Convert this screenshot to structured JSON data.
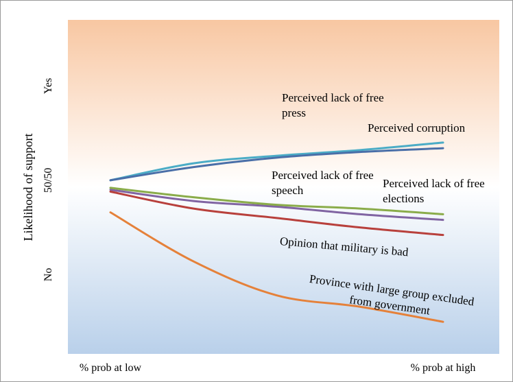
{
  "chart_data": {
    "type": "line",
    "y_label": "Likelihood of support",
    "categories": [
      "% prob at low",
      null,
      null,
      null,
      "% prob at high"
    ],
    "ylim": [
      -42,
      135
    ],
    "yticks": [
      {
        "value": 0,
        "label": "No"
      },
      {
        "value": 50,
        "label": "50/50"
      },
      {
        "value": 100,
        "label": "Yes"
      }
    ],
    "series": [
      {
        "name": "Perceived lack of free press",
        "color": "#4bacc6",
        "values": [
          50,
          59,
          63,
          66,
          70
        ]
      },
      {
        "name": "Perceived corruption",
        "color": "#4a6fa8",
        "values": [
          50,
          57,
          62,
          65,
          67
        ]
      },
      {
        "name": "Perceived lack of free speech",
        "color": "#8064a2",
        "values": [
          45,
          39,
          36,
          32,
          29
        ]
      },
      {
        "name": "Perceived lack of free elections",
        "color": "#8aac4a",
        "values": [
          46,
          41,
          37,
          35,
          32
        ]
      },
      {
        "name": "Opinion that military is bad",
        "color": "#b8403c",
        "values": [
          44,
          35,
          30,
          25,
          21
        ]
      },
      {
        "name": "Province with large group excluded from government",
        "color": "#e5813a",
        "values": [
          33,
          7,
          -11,
          -17,
          -25
        ]
      }
    ]
  }
}
